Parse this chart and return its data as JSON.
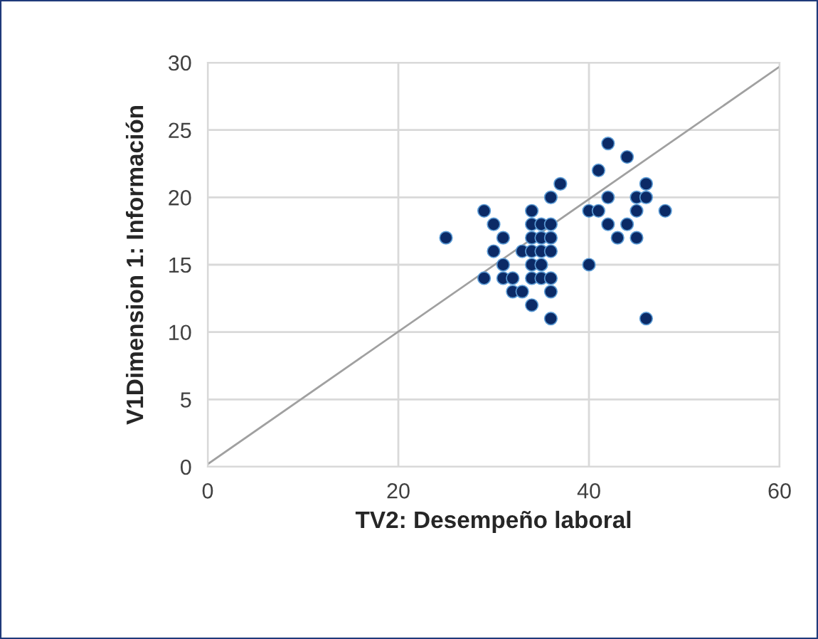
{
  "chart_data": {
    "type": "scatter",
    "xlabel": "TV2: Desempeño laboral",
    "ylabel": "V1Dimension 1: Información",
    "xlim": [
      0,
      60
    ],
    "xticks": [
      0,
      20,
      40,
      60
    ],
    "ylim": [
      0,
      30
    ],
    "yticks": [
      0,
      5,
      10,
      15,
      20,
      25,
      30
    ],
    "grid": true,
    "legend": false,
    "series": [
      {
        "color": "#0b2a66",
        "marker": "circle",
        "x": [
          25,
          29,
          29,
          30,
          30,
          31,
          31,
          31,
          32,
          32,
          33,
          33,
          34,
          34,
          34,
          34,
          34,
          34,
          34,
          35,
          35,
          35,
          35,
          35,
          36,
          36,
          36,
          36,
          36,
          36,
          36,
          37,
          40,
          40,
          41,
          41,
          42,
          42,
          42,
          43,
          44,
          44,
          45,
          45,
          45,
          46,
          46,
          46,
          48
        ],
        "values": [
          17,
          19,
          14,
          18,
          16,
          17,
          15,
          14,
          14,
          13,
          13,
          16,
          19,
          18,
          17,
          16,
          15,
          14,
          12,
          18,
          17,
          16,
          15,
          14,
          18,
          17,
          16,
          14,
          13,
          11,
          20,
          21,
          19,
          15,
          22,
          19,
          24,
          20,
          18,
          17,
          23,
          18,
          20,
          19,
          17,
          21,
          20,
          11,
          19
        ]
      },
      {
        "type": "line",
        "color": "#a0a0a0",
        "marker": "none",
        "line_style": "solid",
        "x": [
          0,
          60
        ],
        "values": [
          0.2,
          29.7
        ]
      }
    ]
  }
}
